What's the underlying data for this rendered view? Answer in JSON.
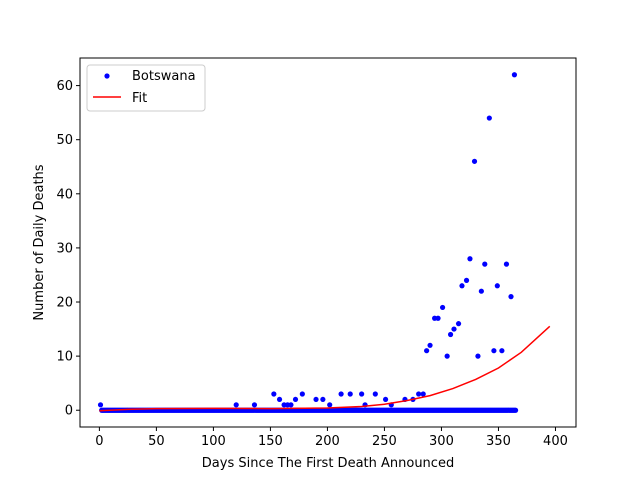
{
  "chart_data": {
    "type": "scatter",
    "xlabel": "Days Since The First Death Announced",
    "ylabel": "Number of Daily Deaths",
    "xlim": [
      -17,
      418
    ],
    "ylim": [
      -3.1,
      65.1
    ],
    "xticks": [
      0,
      50,
      100,
      150,
      200,
      250,
      300,
      350,
      400
    ],
    "yticks": [
      0,
      10,
      20,
      30,
      40,
      50,
      60
    ],
    "grid": false,
    "legend_position": "top-left",
    "series": [
      {
        "name": "Botswana",
        "kind": "scatter",
        "color": "#0000ff",
        "zero_run_x": [
          2,
          365
        ],
        "points": [
          [
            1,
            1
          ],
          [
            120,
            1
          ],
          [
            136,
            1
          ],
          [
            153,
            3
          ],
          [
            158,
            2
          ],
          [
            162,
            1
          ],
          [
            165,
            1
          ],
          [
            168,
            1
          ],
          [
            172,
            2
          ],
          [
            178,
            3
          ],
          [
            190,
            2
          ],
          [
            196,
            2
          ],
          [
            202,
            1
          ],
          [
            212,
            3
          ],
          [
            220,
            3
          ],
          [
            230,
            3
          ],
          [
            233,
            1
          ],
          [
            242,
            3
          ],
          [
            251,
            2
          ],
          [
            256,
            1
          ],
          [
            268,
            2
          ],
          [
            275,
            2
          ],
          [
            280,
            3
          ],
          [
            284,
            3
          ],
          [
            287,
            11
          ],
          [
            290,
            12
          ],
          [
            294,
            17
          ],
          [
            297,
            17
          ],
          [
            301,
            19
          ],
          [
            305,
            10
          ],
          [
            308,
            14
          ],
          [
            311,
            15
          ],
          [
            315,
            16
          ],
          [
            318,
            23
          ],
          [
            322,
            24
          ],
          [
            325,
            28
          ],
          [
            329,
            46
          ],
          [
            332,
            10
          ],
          [
            335,
            22
          ],
          [
            338,
            27
          ],
          [
            342,
            54
          ],
          [
            346,
            11
          ],
          [
            349,
            23
          ],
          [
            353,
            11
          ],
          [
            357,
            27
          ],
          [
            361,
            21
          ],
          [
            364,
            62
          ]
        ]
      },
      {
        "name": "Fit",
        "kind": "line",
        "color": "#ff0000",
        "points": [
          [
            0,
            -0.1
          ],
          [
            25,
            0.15
          ],
          [
            50,
            0.3
          ],
          [
            100,
            0.35
          ],
          [
            150,
            0.3
          ],
          [
            200,
            0.4
          ],
          [
            230,
            0.7
          ],
          [
            250,
            1.1
          ],
          [
            270,
            1.8
          ],
          [
            290,
            2.7
          ],
          [
            310,
            4.0
          ],
          [
            330,
            5.7
          ],
          [
            350,
            7.8
          ],
          [
            370,
            10.7
          ],
          [
            395,
            15.5
          ]
        ]
      }
    ]
  }
}
